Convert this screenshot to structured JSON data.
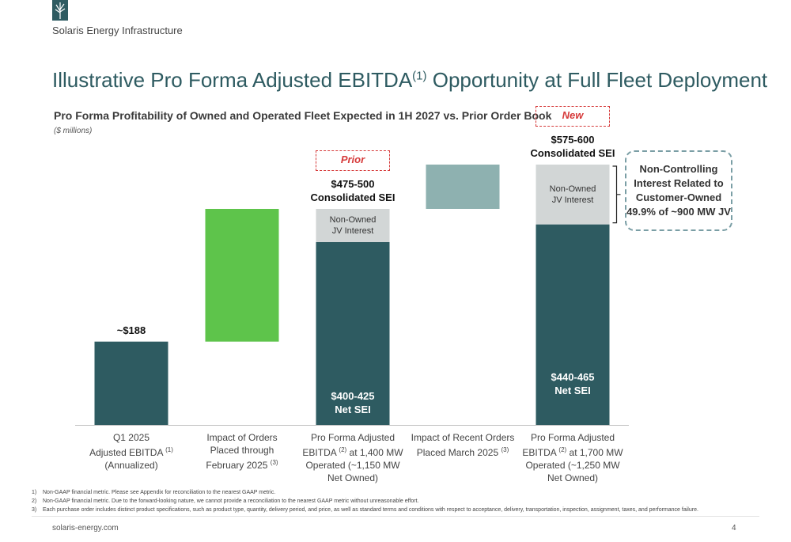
{
  "header": {
    "company": "Solaris Energy Infrastructure"
  },
  "page": {
    "title": "Illustrative Pro Forma Adjusted EBITDA",
    "title_sup": "(1)",
    "title_rest": " Opportunity at Full Fleet Deployment",
    "subtitle": "Pro Forma Profitability of Owned and Operated Fleet Expected in 1H 2027 vs. Prior Order Book",
    "units": "($ millions)"
  },
  "chart_data": {
    "type": "waterfall",
    "units": "$ millions",
    "ylim": [
      0,
      700
    ],
    "categories": [
      {
        "lines": [
          "Q1 2025",
          "Adjusted EBITDA (1)",
          "(Annualized)"
        ]
      },
      {
        "lines": [
          "Impact of Orders",
          "Placed through",
          "February 2025 (3)"
        ]
      },
      {
        "lines": [
          "Pro Forma Adjusted",
          "EBITDA (2) at 1,400 MW",
          "Operated (~1,150 MW",
          "Net Owned)"
        ]
      },
      {
        "lines": [
          "Impact of Recent Orders",
          "Placed March 2025 (3)"
        ]
      },
      {
        "lines": [
          "Pro Forma Adjusted",
          "EBITDA (2) at 1,700 MW",
          "Operated (~1,250 MW",
          "Net Owned)"
        ]
      }
    ],
    "bars": [
      {
        "segments": [
          {
            "from": 0,
            "to": 188,
            "color": "#2e5b61"
          }
        ],
        "label_above": "~$188"
      },
      {
        "segments": [
          {
            "from": 188,
            "to": 487.5,
            "color": "#5ec44b"
          }
        ]
      },
      {
        "segments": [
          {
            "from": 0,
            "to": 412.5,
            "color": "#2e5b61",
            "label": "$400-425\nNet SEI"
          },
          {
            "from": 412.5,
            "to": 487.5,
            "color": "#d2d6d6",
            "label": "Non-Owned\nJV Interest"
          }
        ],
        "label_above": "$475-500\nConsolidated SEI",
        "tag": "Prior"
      },
      {
        "segments": [
          {
            "from": 487.5,
            "to": 587.5,
            "color": "#8eb1b0"
          }
        ]
      },
      {
        "segments": [
          {
            "from": 0,
            "to": 452.5,
            "color": "#2e5b61",
            "label": "$440-465\nNet SEI"
          },
          {
            "from": 452.5,
            "to": 587.5,
            "color": "#d2d6d6",
            "label": "Non-Owned\nJV Interest"
          }
        ],
        "label_above": "$575-600\nConsolidated SEI",
        "tag": "New"
      }
    ],
    "callout": "Non-Controlling Interest Related to Customer-Owned 49.9% of ~900 MW JV"
  },
  "footnotes": [
    {
      "num": "1)",
      "text": "Non-GAAP financial metric. Please see Appendix for reconciliation to the nearest GAAP metric."
    },
    {
      "num": "2)",
      "text": "Non-GAAP financial metric. Due to the forward-looking nature, we cannot provide a reconciliation to the nearest GAAP metric without unreasonable effort."
    },
    {
      "num": "3)",
      "text": "Each purchase order includes distinct product specifications, such as product type, quantity, delivery period, and price, as well as standard terms and conditions with respect to acceptance, delivery, transportation, inspection, assignment, taxes, and performance failure."
    }
  ],
  "footer": {
    "website": "solaris-energy.com",
    "page_number": "4"
  }
}
